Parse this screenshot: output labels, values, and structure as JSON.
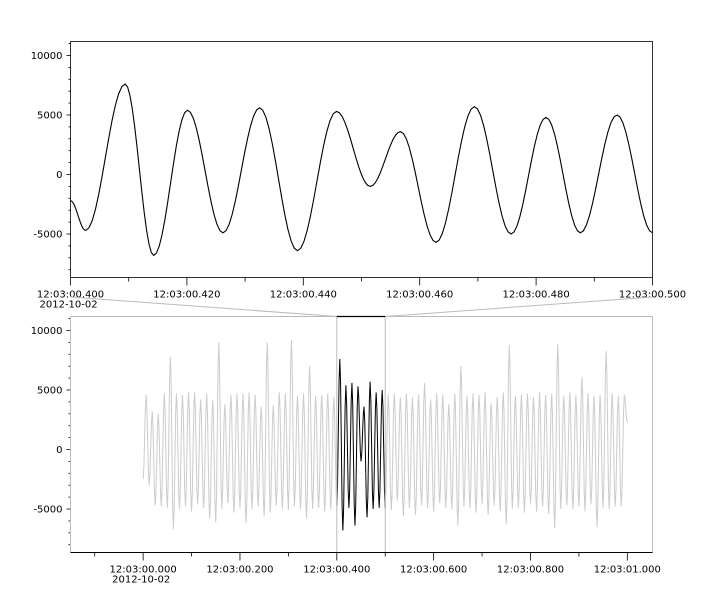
{
  "chart_data": [
    {
      "type": "line",
      "panel": "top-zoom",
      "xlim": [
        0.4,
        0.5
      ],
      "ylim": [
        -8655,
        11176
      ],
      "date_label": "2012-10-02",
      "xticks": [
        0.4,
        0.42,
        0.44,
        0.46,
        0.48,
        0.5
      ],
      "xtick_labels": [
        "12:03:00.400",
        "12:03:00.420",
        "12:03:00.440",
        "12:03:00.460",
        "12:03:00.480",
        "12:03:00.500"
      ],
      "yticks": [
        -5000,
        0,
        5000,
        10000
      ],
      "ytick_labels": [
        "-5000",
        "0",
        "5000",
        "10000"
      ],
      "grid": false,
      "line_color": "#000000",
      "extrema": {
        "t": [
          0.4,
          0.4026,
          0.4094,
          0.4143,
          0.4201,
          0.4262,
          0.4325,
          0.439,
          0.4457,
          0.4515,
          0.4567,
          0.4628,
          0.4694,
          0.4757,
          0.4817,
          0.4876,
          0.4939,
          0.5
        ],
        "v": [
          -2200,
          -4700,
          7600,
          -6800,
          5400,
          -4900,
          5600,
          -6400,
          5300,
          -1000,
          3600,
          -5700,
          5700,
          -5000,
          4800,
          -4900,
          5000,
          -4900
        ]
      }
    },
    {
      "type": "line",
      "panel": "bottom-overview",
      "xlim": [
        -0.15,
        1.052
      ],
      "ylim": [
        -8655,
        11176
      ],
      "date_label": "2012-10-02",
      "xticks": [
        0.0,
        0.2,
        0.4,
        0.6,
        0.8,
        1.0
      ],
      "xtick_labels": [
        "12:03:00.000",
        "12:03:00.200",
        "12:03:00.400",
        "12:03:00.600",
        "12:03:00.800",
        "12:03:01.000"
      ],
      "yticks": [
        -5000,
        0,
        5000,
        10000
      ],
      "ytick_labels": [
        "-5000",
        "0",
        "5000",
        "10000"
      ],
      "grid": false,
      "line_color": "#cccccc",
      "highlight_color": "#000000",
      "highlight_range": [
        0.4,
        0.5
      ],
      "trace": {
        "t_start": 0.0,
        "dt": 0.00625,
        "extrema": [
          -2500,
          4600,
          -3000,
          3200,
          -4700,
          3000,
          -4800,
          4700,
          -4900,
          7800,
          -6700,
          4700,
          -5000,
          4600,
          -4800,
          4800,
          -5200,
          4800,
          -4600,
          4200,
          -4900,
          4700,
          -5800,
          4200,
          -6100,
          9000,
          -5000,
          3800,
          -4500,
          4600,
          -5300,
          4700,
          -4900,
          4700,
          -6200,
          4800,
          -5000,
          4600,
          -4800,
          3600,
          -5600,
          9000,
          -5300,
          3700,
          -4700,
          4800,
          -5000,
          4700,
          -5100,
          9200,
          -4800,
          4500,
          -5000,
          4700,
          -5800,
          7000,
          -5000,
          4500,
          -4900,
          4600,
          -5200,
          4700,
          -5000,
          4400,
          -4700,
          7600,
          -6800,
          5400,
          -4900,
          5600,
          -6400,
          5300,
          -1000,
          3600,
          -5700,
          5700,
          -5000,
          4800,
          -4900,
          5000,
          -4900,
          4600,
          -5100,
          4700,
          -4300,
          4400,
          -5600,
          4700,
          -4900,
          4400,
          -5500,
          4600,
          -4700,
          5600,
          -4900,
          4200,
          -5200,
          4700,
          -4500,
          4600,
          -4900,
          3800,
          -5000,
          4700,
          -6400,
          7000,
          -4800,
          4500,
          -4900,
          4700,
          -5300,
          4600,
          -4600,
          4800,
          -5500,
          3900,
          -4700,
          4400,
          -5200,
          4800,
          -6300,
          8800,
          -5000,
          4500,
          -4900,
          4600,
          -5300,
          4700,
          -4600,
          4400,
          -5200,
          4800,
          -4800,
          4600,
          -5400,
          4700,
          -6600,
          8900,
          -5000,
          4500,
          -4700,
          4800,
          -5000,
          4600,
          -4800,
          6100,
          -5200,
          4700,
          -4600,
          4500,
          -6500,
          4600,
          -4900,
          8300,
          -5000,
          4700,
          -4800,
          4500,
          -4800,
          4600,
          2300
        ]
      }
    }
  ]
}
